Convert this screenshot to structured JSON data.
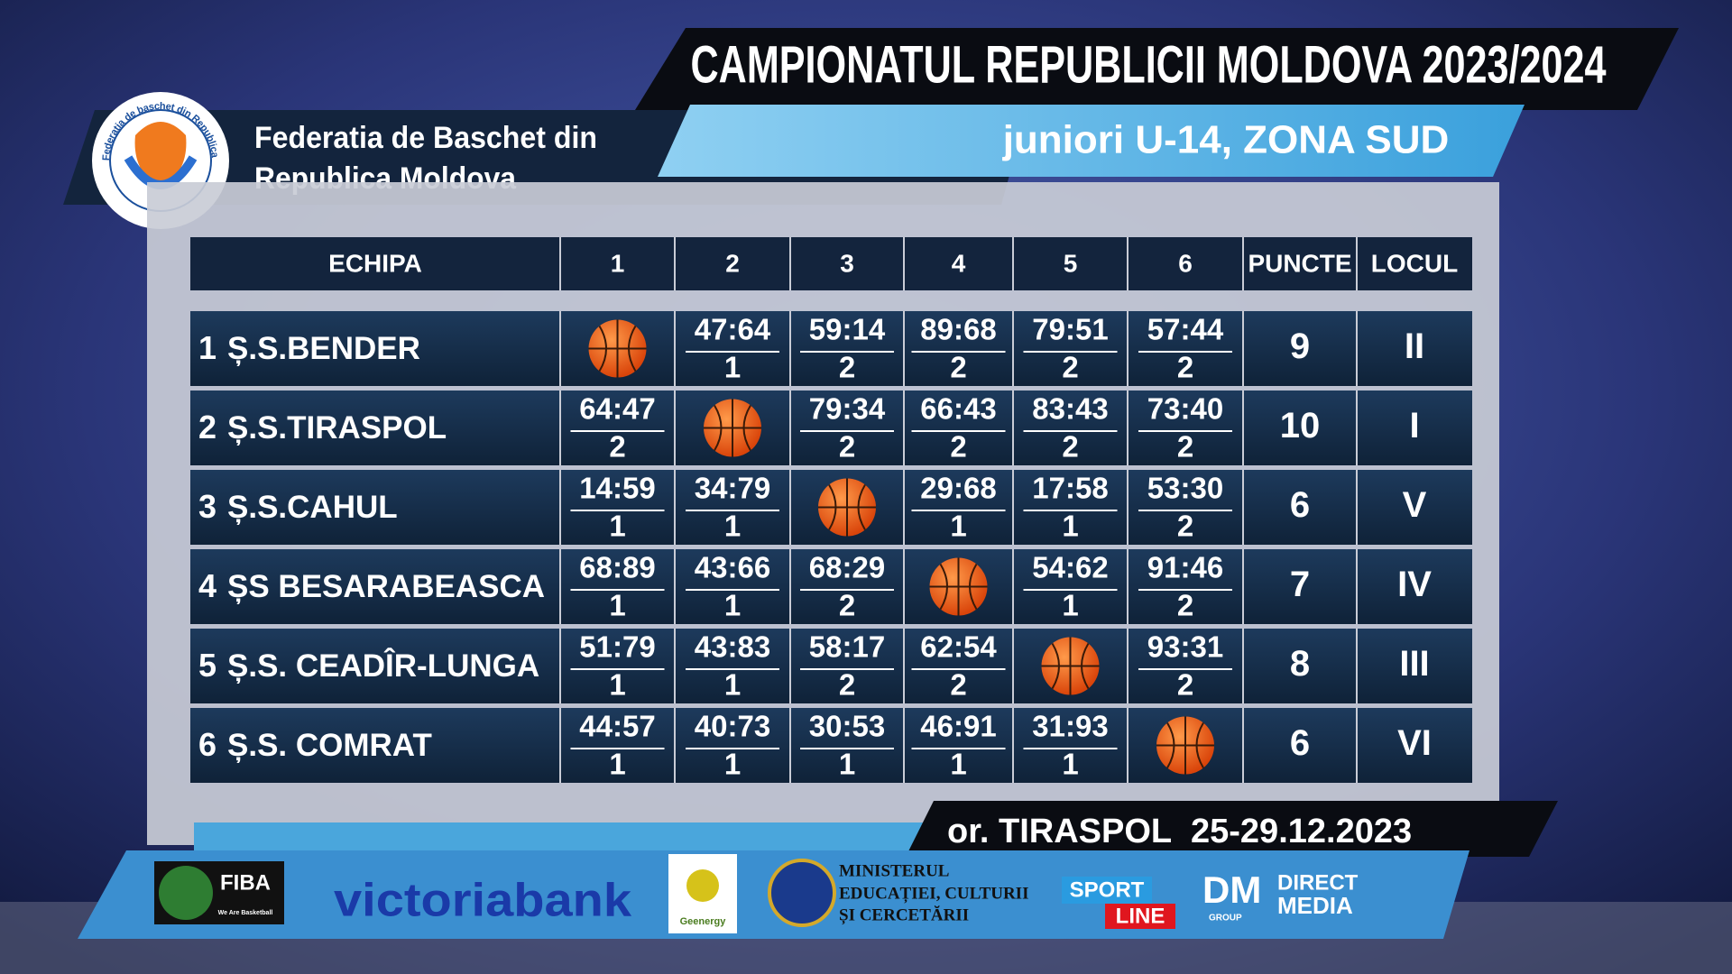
{
  "header": {
    "title": "CAMPIONATUL REPUBLICII MOLDOVA 2023/2024",
    "subtitle": "juniori U-14, ZONA SUD",
    "federation": [
      "Federatia de Baschet din",
      "Republica Moldova"
    ],
    "logo_text": "Federatia de baschet din Republica Moldova"
  },
  "table": {
    "columns": [
      "ECHIPA",
      "1",
      "2",
      "3",
      "4",
      "5",
      "6",
      "PUNCTE",
      "LOCUL"
    ],
    "rows": [
      {
        "number": 1,
        "team": "Ș.S.BENDER",
        "cells": [
          null,
          {
            "score": "47:64",
            "points": 1
          },
          {
            "score": "59:14",
            "points": 2
          },
          {
            "score": "89:68",
            "points": 2
          },
          {
            "score": "79:51",
            "points": 2
          },
          {
            "score": "57:44",
            "points": 2
          }
        ],
        "points": 9,
        "place": "II"
      },
      {
        "number": 2,
        "team": "Ș.S.TIRASPOL",
        "cells": [
          {
            "score": "64:47",
            "points": 2
          },
          null,
          {
            "score": "79:34",
            "points": 2
          },
          {
            "score": "66:43",
            "points": 2
          },
          {
            "score": "83:43",
            "points": 2
          },
          {
            "score": "73:40",
            "points": 2
          }
        ],
        "points": 10,
        "place": "I"
      },
      {
        "number": 3,
        "team": "Ș.S.CAHUL",
        "cells": [
          {
            "score": "14:59",
            "points": 1
          },
          {
            "score": "34:79",
            "points": 1
          },
          null,
          {
            "score": "29:68",
            "points": 1
          },
          {
            "score": "17:58",
            "points": 1
          },
          {
            "score": "53:30",
            "points": 2
          }
        ],
        "points": 6,
        "place": "V"
      },
      {
        "number": 4,
        "team": "ȘS BESARABEASCA",
        "cells": [
          {
            "score": "68:89",
            "points": 1
          },
          {
            "score": "43:66",
            "points": 1
          },
          {
            "score": "68:29",
            "points": 2
          },
          null,
          {
            "score": "54:62",
            "points": 1
          },
          {
            "score": "91:46",
            "points": 2
          }
        ],
        "points": 7,
        "place": "IV"
      },
      {
        "number": 5,
        "team": "Ș.S. CEADÎR-LUNGA",
        "cells": [
          {
            "score": "51:79",
            "points": 1
          },
          {
            "score": "43:83",
            "points": 1
          },
          {
            "score": "58:17",
            "points": 2
          },
          {
            "score": "62:54",
            "points": 2
          },
          null,
          {
            "score": "93:31",
            "points": 2
          }
        ],
        "points": 8,
        "place": "III"
      },
      {
        "number": 6,
        "team": "Ș.S. COMRAT",
        "cells": [
          {
            "score": "44:57",
            "points": 1
          },
          {
            "score": "40:73",
            "points": 1
          },
          {
            "score": "30:53",
            "points": 1
          },
          {
            "score": "46:91",
            "points": 1
          },
          {
            "score": "31:93",
            "points": 1
          },
          null
        ],
        "points": 6,
        "place": "VI"
      }
    ]
  },
  "footer": {
    "location": "or. TIRASPOL",
    "dates": "25-29.12.2023",
    "sponsors": {
      "fiba": "FIBA",
      "fiba_tagline": "We Are Basketball",
      "bank": "victoriabank",
      "energy": "Geenergy",
      "ministry": [
        "MINISTERUL",
        "EDUCAȚIEI, CULTURII",
        "ȘI CERCETĂRII"
      ],
      "sport": [
        "SPORT",
        "LINE"
      ],
      "media": [
        "DM",
        "GROUP",
        "DIRECT",
        "MEDIA"
      ]
    }
  }
}
